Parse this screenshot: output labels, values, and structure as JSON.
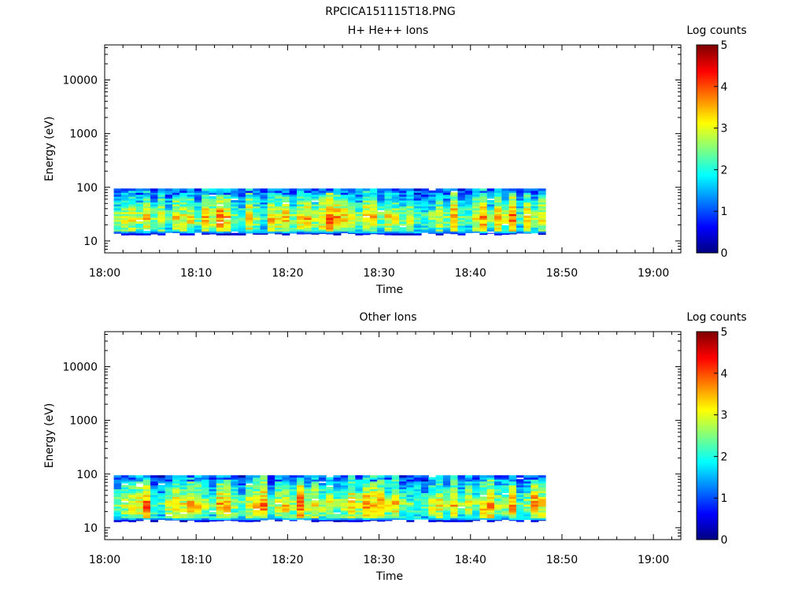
{
  "figure_title": "RPCICA151115T18.PNG",
  "chart_data": [
    {
      "type": "heatmap",
      "title": "H+ He++ Ions",
      "xlabel": "Time",
      "ylabel": "Energy (eV)",
      "yscale": "log",
      "x_ticks": [
        "18:00",
        "18:10",
        "18:20",
        "18:30",
        "18:40",
        "18:50",
        "19:00"
      ],
      "xlim": [
        "18:00",
        "19:03"
      ],
      "y_ticks": [
        10,
        100,
        1000,
        10000
      ],
      "y_tick_labels": [
        "10",
        "100",
        "1000",
        "10000"
      ],
      "ylim": [
        6,
        45000
      ],
      "data_time_range": [
        "18:01",
        "18:48"
      ],
      "data_energy_range_eV": [
        13,
        95
      ],
      "colorbar": {
        "label": "Log counts",
        "range": [
          0,
          5
        ],
        "ticks": [
          "0",
          "1",
          "2",
          "3",
          "4",
          "5"
        ],
        "colormap": "jet"
      },
      "grid": false,
      "seed": 7
    },
    {
      "type": "heatmap",
      "title": "Other Ions",
      "xlabel": "Time",
      "ylabel": "Energy (eV)",
      "yscale": "log",
      "x_ticks": [
        "18:00",
        "18:10",
        "18:20",
        "18:30",
        "18:40",
        "18:50",
        "19:00"
      ],
      "xlim": [
        "18:00",
        "19:03"
      ],
      "y_ticks": [
        10,
        100,
        1000,
        10000
      ],
      "y_tick_labels": [
        "10",
        "100",
        "1000",
        "10000"
      ],
      "ylim": [
        6,
        45000
      ],
      "data_time_range": [
        "18:01",
        "18:48"
      ],
      "data_energy_range_eV": [
        13,
        95
      ],
      "colorbar": {
        "label": "Log counts",
        "range": [
          0,
          5
        ],
        "ticks": [
          "0",
          "1",
          "2",
          "3",
          "4",
          "5"
        ],
        "colormap": "jet"
      },
      "grid": false,
      "seed": 19
    }
  ]
}
